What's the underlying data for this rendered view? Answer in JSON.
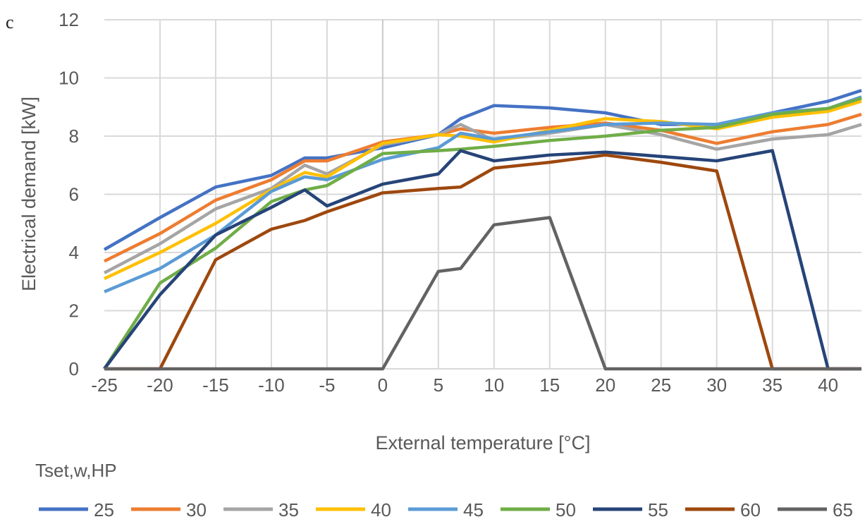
{
  "panel_label": "c",
  "chart_data": {
    "type": "line",
    "xlabel": "External temperature [°C]",
    "ylabel": "Electrical demand [kW]",
    "legend_title": "Tset,w,HP",
    "legend_position": "bottom",
    "grid": true,
    "xlim": [
      -25,
      43
    ],
    "ylim": [
      0,
      12
    ],
    "xticks": [
      -25,
      -20,
      -15,
      -10,
      -5,
      0,
      5,
      10,
      15,
      20,
      25,
      30,
      35,
      40
    ],
    "yticks": [
      0,
      2,
      4,
      6,
      8,
      10,
      12
    ],
    "x": [
      -25,
      -20,
      -15,
      -10,
      -7,
      -5,
      0,
      5,
      7,
      10,
      15,
      20,
      25,
      30,
      35,
      40,
      43
    ],
    "series": [
      {
        "name": "25",
        "color": "#4472C4",
        "values": [
          4.1,
          5.2,
          6.25,
          6.65,
          7.25,
          7.25,
          7.6,
          8.05,
          8.6,
          9.05,
          8.97,
          8.8,
          8.4,
          8.4,
          8.8,
          9.2,
          9.57
        ]
      },
      {
        "name": "30",
        "color": "#ED7D31",
        "values": [
          3.7,
          4.65,
          5.8,
          6.5,
          7.15,
          7.15,
          7.8,
          8.05,
          8.25,
          8.1,
          8.3,
          8.45,
          8.2,
          7.75,
          8.15,
          8.4,
          8.75
        ]
      },
      {
        "name": "35",
        "color": "#A5A5A5",
        "values": [
          3.3,
          4.3,
          5.5,
          6.2,
          7.0,
          6.7,
          7.7,
          8.05,
          8.4,
          7.85,
          8.1,
          8.4,
          8.05,
          7.55,
          7.9,
          8.05,
          8.4
        ]
      },
      {
        "name": "40",
        "color": "#FFC000",
        "values": [
          3.1,
          4.0,
          5.0,
          6.15,
          6.75,
          6.6,
          7.75,
          8.05,
          8.0,
          7.8,
          8.2,
          8.6,
          8.5,
          8.25,
          8.65,
          8.85,
          9.2
        ]
      },
      {
        "name": "45",
        "color": "#5B9BD5",
        "values": [
          2.65,
          3.45,
          4.6,
          6.1,
          6.6,
          6.5,
          7.2,
          7.6,
          8.1,
          7.9,
          8.15,
          8.4,
          8.45,
          8.4,
          8.8,
          8.95,
          9.35
        ]
      },
      {
        "name": "50",
        "color": "#70AD47",
        "values": [
          0,
          2.95,
          4.15,
          5.75,
          6.15,
          6.3,
          7.4,
          7.5,
          7.55,
          7.65,
          7.85,
          8.0,
          8.2,
          8.3,
          8.75,
          8.95,
          9.3
        ]
      },
      {
        "name": "55",
        "color": "#264478",
        "values": [
          0,
          2.55,
          4.6,
          5.55,
          6.15,
          5.6,
          6.35,
          6.7,
          7.5,
          7.15,
          7.35,
          7.45,
          7.3,
          7.15,
          7.5,
          0,
          0
        ]
      },
      {
        "name": "60",
        "color": "#9E480E",
        "values": [
          0,
          0,
          3.75,
          4.8,
          5.1,
          5.4,
          6.05,
          6.2,
          6.25,
          6.9,
          7.1,
          7.35,
          7.1,
          6.8,
          0,
          0,
          0
        ]
      },
      {
        "name": "65",
        "color": "#636363",
        "values": [
          0,
          0,
          0,
          0,
          0,
          0,
          0,
          3.35,
          3.45,
          4.95,
          5.2,
          0,
          0,
          0,
          0,
          0,
          0
        ]
      }
    ]
  }
}
